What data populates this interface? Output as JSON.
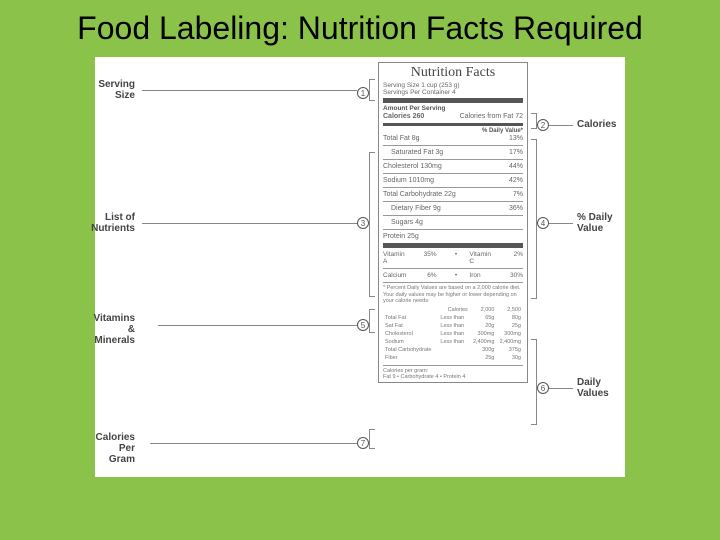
{
  "title": "Food Labeling: Nutrition Facts Required",
  "panel": {
    "heading": "Nutrition Facts",
    "serving_size": "Serving Size 1 cup (253 g)",
    "servings_per": "Servings Per Container 4",
    "amount_per": "Amount Per Serving",
    "calories_label": "Calories 260",
    "calories_fat": "Calories from Fat 72",
    "dv_header": "% Daily Value*",
    "nutrients": [
      {
        "name": "Total Fat 8g",
        "dv": "13%",
        "indent": false
      },
      {
        "name": "Saturated Fat 3g",
        "dv": "17%",
        "indent": true
      },
      {
        "name": "Cholesterol 130mg",
        "dv": "44%",
        "indent": false
      },
      {
        "name": "Sodium 1010mg",
        "dv": "42%",
        "indent": false
      },
      {
        "name": "Total Carbohydrate 22g",
        "dv": "7%",
        "indent": false
      },
      {
        "name": "Dietary Fiber 9g",
        "dv": "36%",
        "indent": true
      },
      {
        "name": "Sugars 4g",
        "dv": "",
        "indent": true
      },
      {
        "name": "Protein 25g",
        "dv": "",
        "indent": false
      }
    ],
    "vitamins": [
      {
        "a": "Vitamin A",
        "av": "35%",
        "b": "Vitamin C",
        "bv": "2%"
      },
      {
        "a": "Calcium",
        "av": "6%",
        "b": "Iron",
        "bv": "30%"
      }
    ],
    "footnote": "* Percent Daily Values are based on a 2,000 calorie diet. Your daily values may be higher or lower depending on your calorie needs:",
    "foot_cols": [
      "Calories",
      "2,000",
      "2,500"
    ],
    "foot_rows": [
      [
        "Total Fat",
        "Less than",
        "65g",
        "80g"
      ],
      [
        "Sat Fat",
        "Less than",
        "20g",
        "25g"
      ],
      [
        "Cholesterol",
        "Less than",
        "300mg",
        "300mg"
      ],
      [
        "Sodium",
        "Less than",
        "2,400mg",
        "2,400mg"
      ],
      [
        "Total Carbohydrate",
        "",
        "300g",
        "375g"
      ],
      [
        "Fiber",
        "",
        "25g",
        "30g"
      ]
    ],
    "cal_per_gram_label": "Calories per gram:",
    "cal_per_gram": "Fat 9   •   Carbohydrate 4   •   Protein 4"
  },
  "callouts": {
    "c1": "Serving\nSize",
    "c2": "Calories",
    "c3": "List of\nNutrients",
    "c4": "% Daily\nValue",
    "c5": "Vitamins &\nMinerals",
    "c6": "Daily\nValues",
    "c7": "Calories\nPer Gram"
  }
}
